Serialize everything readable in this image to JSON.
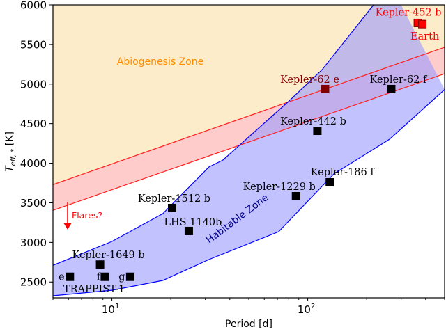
{
  "chart_data": {
    "type": "scatter",
    "xlabel": "Period [d]",
    "ylabel": "T",
    "ylabel_sub": "eff, *",
    "ylabel_unit": " [K]",
    "xscale": "log",
    "xlim": [
      5,
      500
    ],
    "ylim": [
      2300,
      6000
    ],
    "x_ticks": [
      {
        "value": 10,
        "base": "10",
        "exp": "1"
      },
      {
        "value": 100,
        "base": "10",
        "exp": "2"
      }
    ],
    "y_ticks": [
      "2500",
      "3000",
      "3500",
      "4000",
      "4500",
      "5000",
      "5500",
      "6000"
    ],
    "grid": false,
    "zones": {
      "abiogenesis": {
        "label": "Abiogenesis Zone",
        "color": "#ff8c00",
        "fill": "#fdecc9",
        "upper_line": [
          [
            5,
            3730
          ],
          [
            500,
            5465
          ]
        ],
        "lower_line": [
          [
            5,
            3405
          ],
          [
            500,
            5130
          ]
        ],
        "band_fill": "#ffcccc",
        "line_color": "#ff2020"
      },
      "habitable": {
        "label": "Habitable Zone",
        "color": "#00008b",
        "fill": "#c0c0fa",
        "line_color": "#0000ff",
        "inner_edge": [
          [
            5,
            2710
          ],
          [
            10,
            3012
          ],
          [
            18.2,
            3363
          ],
          [
            31.3,
            3952
          ],
          [
            36.9,
            4040
          ],
          [
            78.9,
            4770
          ],
          [
            118.6,
            5183
          ],
          [
            217,
            6000
          ],
          [
            260,
            6300
          ]
        ],
        "outer_edge": [
          [
            5,
            2326
          ],
          [
            10,
            2396
          ],
          [
            18.2,
            2520
          ],
          [
            31.3,
            2783
          ],
          [
            71,
            3135
          ],
          [
            136,
            3864
          ],
          [
            262,
            4304
          ],
          [
            500,
            4930
          ]
        ]
      }
    },
    "annotation": {
      "text": "Flares?",
      "color": "#ff0000",
      "arrow": "down"
    },
    "points": [
      {
        "name": "e",
        "period": 6.1,
        "teff": 2566,
        "color": "#000000",
        "label_color": "#000000"
      },
      {
        "name": "f",
        "period": 9.2,
        "teff": 2566,
        "color": "#000000",
        "label_color": "#000000"
      },
      {
        "name": "g",
        "period": 12.4,
        "teff": 2566,
        "color": "#000000",
        "label_color": "#000000"
      },
      {
        "name": "Kepler-1649 b",
        "period": 8.7,
        "teff": 2720,
        "color": "#000000",
        "label_color": "#000000"
      },
      {
        "name": "Kepler-1512 b",
        "period": 20.3,
        "teff": 3434,
        "color": "#000000",
        "label_color": "#000000"
      },
      {
        "name": "LHS 1140b",
        "period": 24.7,
        "teff": 3144,
        "color": "#000000",
        "label_color": "#000000"
      },
      {
        "name": "Kepler-1229 b",
        "period": 87.1,
        "teff": 3583,
        "color": "#000000",
        "label_color": "#000000"
      },
      {
        "name": "Kepler-186 f",
        "period": 129.6,
        "teff": 3759,
        "color": "#000000",
        "label_color": "#000000"
      },
      {
        "name": "Kepler-442 b",
        "period": 112,
        "teff": 4409,
        "color": "#000000",
        "label_color": "#000000"
      },
      {
        "name": "Kepler-62 e",
        "period": 122.6,
        "teff": 4937,
        "color": "#800000",
        "label_color": "#800000"
      },
      {
        "name": "Kepler-62 f",
        "period": 267,
        "teff": 4937,
        "color": "#000000",
        "label_color": "#000000"
      },
      {
        "name": "Earth",
        "period": 365,
        "teff": 5772,
        "color": "#ff0000",
        "label_color": "#ff0000"
      },
      {
        "name": "Kepler-452 b",
        "period": 385,
        "teff": 5757,
        "color": "#ff0000",
        "label_color": "#ff0000"
      }
    ],
    "group_label": "TRAPPIST-1"
  }
}
